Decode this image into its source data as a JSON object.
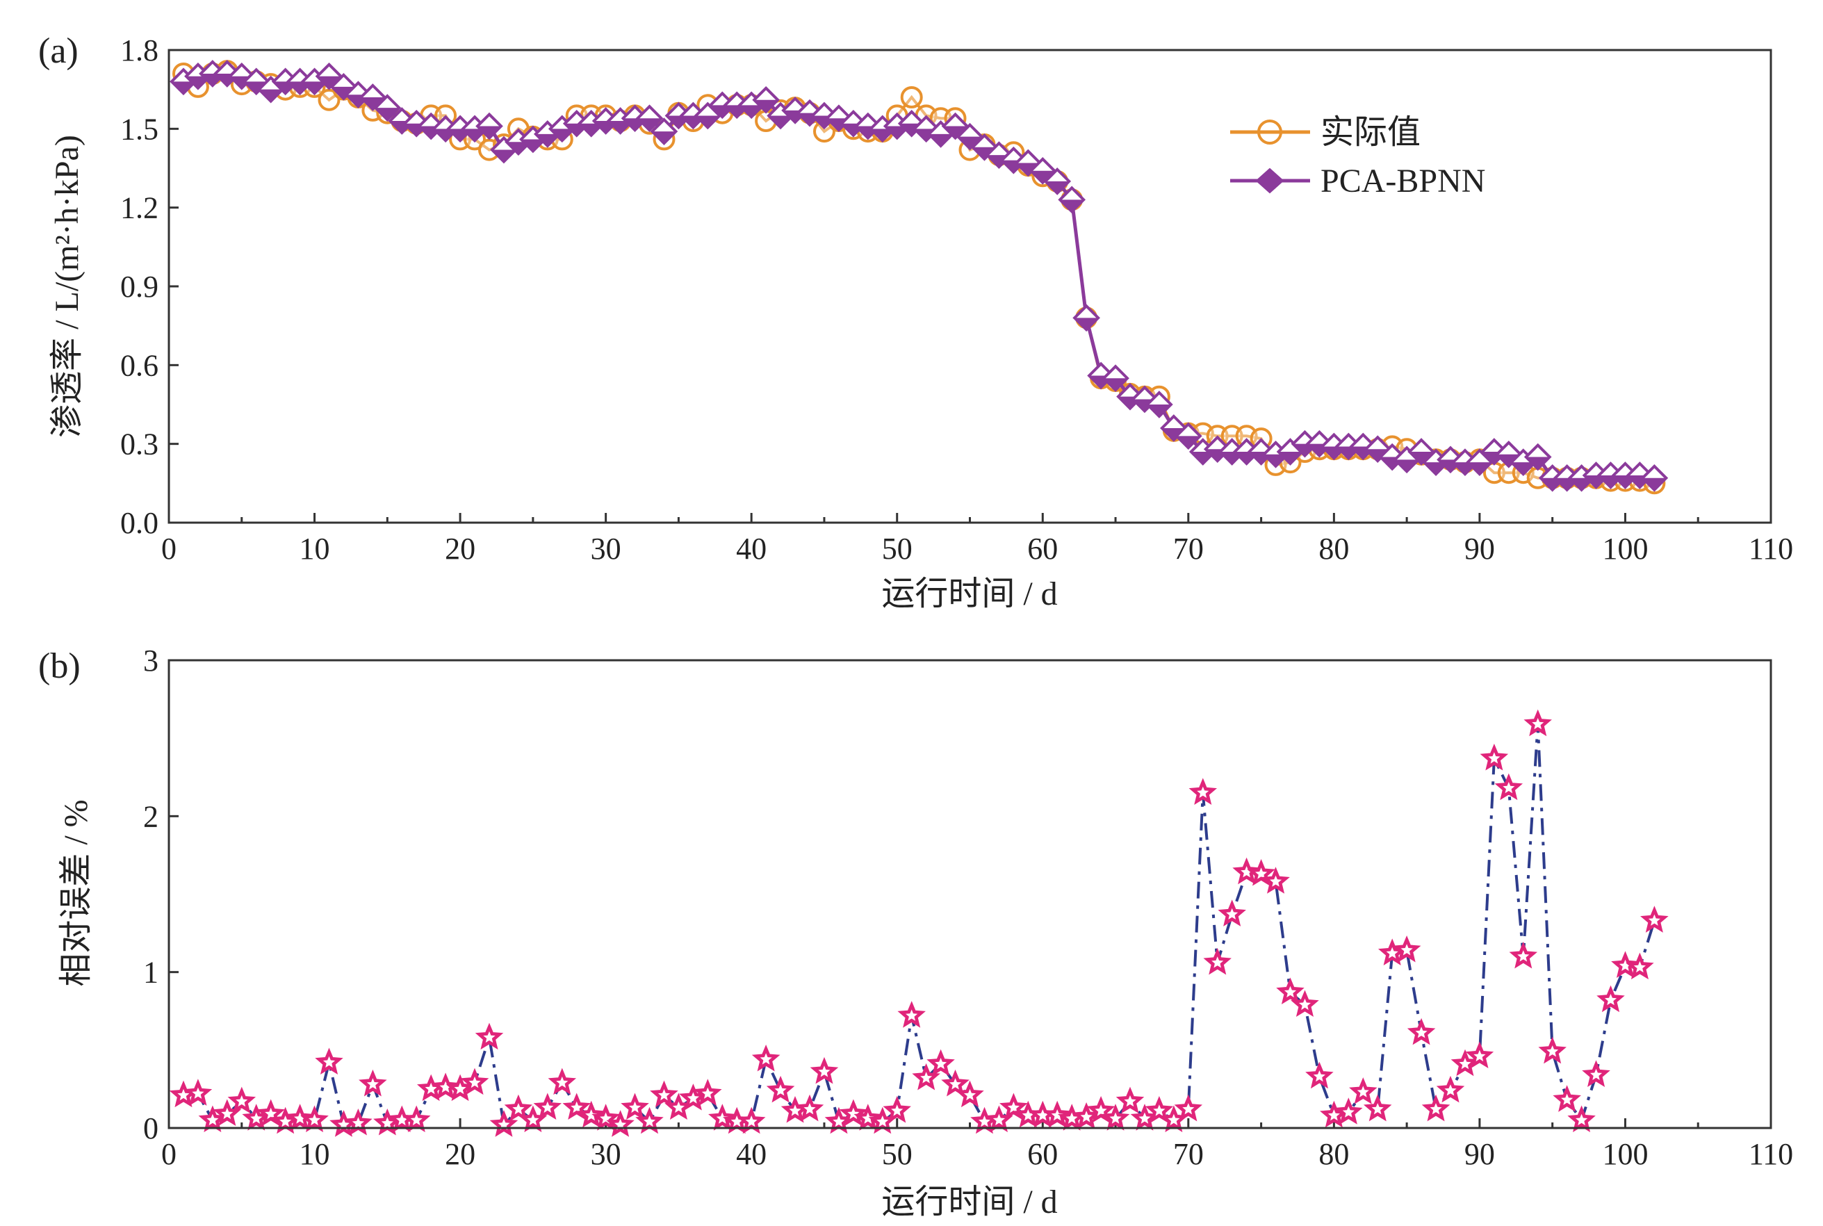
{
  "chart_data": [
    {
      "type": "line",
      "panel_label": "(a)",
      "xlabel": "运行时间 / d",
      "ylabel": "渗透率 / L/(m²·h·kPa)",
      "xlim": [
        0,
        110
      ],
      "ylim": [
        0.0,
        1.8
      ],
      "xticks": [
        "0",
        "10",
        "20",
        "30",
        "40",
        "50",
        "60",
        "70",
        "80",
        "90",
        "100",
        "110"
      ],
      "yticks": [
        "0.0",
        "0.3",
        "0.6",
        "0.9",
        "1.2",
        "1.5",
        "1.8"
      ],
      "legend_position": "upper-right",
      "x": [
        1,
        2,
        3,
        4,
        5,
        6,
        7,
        8,
        9,
        10,
        11,
        12,
        13,
        14,
        15,
        16,
        17,
        18,
        19,
        20,
        21,
        22,
        23,
        24,
        25,
        26,
        27,
        28,
        29,
        30,
        31,
        32,
        33,
        34,
        35,
        36,
        37,
        38,
        39,
        40,
        41,
        42,
        43,
        44,
        45,
        46,
        47,
        48,
        49,
        50,
        51,
        52,
        53,
        54,
        55,
        56,
        57,
        58,
        59,
        60,
        61,
        62,
        63,
        64,
        65,
        66,
        67,
        68,
        69,
        70,
        71,
        72,
        73,
        74,
        75,
        76,
        77,
        78,
        79,
        80,
        81,
        82,
        83,
        84,
        85,
        86,
        87,
        88,
        89,
        90,
        91,
        92,
        93,
        94,
        95,
        96,
        97,
        98,
        99,
        100,
        101,
        102
      ],
      "series": [
        {
          "name": "实际值",
          "color": "#e8922e",
          "marker": "circle",
          "values": [
            1.71,
            1.66,
            1.71,
            1.72,
            1.67,
            1.68,
            1.67,
            1.65,
            1.66,
            1.66,
            1.61,
            1.65,
            1.62,
            1.57,
            1.56,
            1.53,
            1.52,
            1.55,
            1.55,
            1.46,
            1.46,
            1.42,
            1.44,
            1.5,
            1.47,
            1.46,
            1.46,
            1.55,
            1.55,
            1.55,
            1.53,
            1.55,
            1.52,
            1.46,
            1.56,
            1.53,
            1.59,
            1.56,
            1.59,
            1.59,
            1.53,
            1.57,
            1.58,
            1.56,
            1.49,
            1.53,
            1.5,
            1.49,
            1.49,
            1.55,
            1.62,
            1.55,
            1.54,
            1.54,
            1.42,
            1.44,
            1.4,
            1.41,
            1.36,
            1.32,
            1.3,
            1.23,
            0.78,
            0.55,
            0.54,
            0.49,
            0.48,
            0.48,
            0.35,
            0.34,
            0.34,
            0.33,
            0.33,
            0.33,
            0.32,
            0.22,
            0.23,
            0.27,
            0.28,
            0.28,
            0.28,
            0.28,
            0.28,
            0.29,
            0.28,
            0.26,
            0.24,
            0.24,
            0.23,
            0.24,
            0.19,
            0.19,
            0.19,
            0.17,
            0.17,
            0.17,
            0.17,
            0.17,
            0.16,
            0.16,
            0.16,
            0.15
          ]
        },
        {
          "name": "PCA-BPNN",
          "color": "#8b3a9b",
          "marker": "diamond",
          "values": [
            1.68,
            1.7,
            1.71,
            1.71,
            1.7,
            1.68,
            1.65,
            1.68,
            1.68,
            1.68,
            1.7,
            1.66,
            1.63,
            1.62,
            1.58,
            1.53,
            1.52,
            1.51,
            1.5,
            1.5,
            1.5,
            1.51,
            1.42,
            1.45,
            1.46,
            1.48,
            1.5,
            1.52,
            1.52,
            1.53,
            1.53,
            1.54,
            1.54,
            1.49,
            1.55,
            1.55,
            1.55,
            1.59,
            1.59,
            1.59,
            1.61,
            1.55,
            1.57,
            1.56,
            1.55,
            1.54,
            1.52,
            1.51,
            1.5,
            1.51,
            1.52,
            1.5,
            1.48,
            1.51,
            1.47,
            1.43,
            1.4,
            1.38,
            1.37,
            1.34,
            1.3,
            1.23,
            0.78,
            0.56,
            0.55,
            0.48,
            0.47,
            0.45,
            0.36,
            0.33,
            0.27,
            0.28,
            0.27,
            0.27,
            0.27,
            0.26,
            0.27,
            0.3,
            0.3,
            0.29,
            0.29,
            0.29,
            0.28,
            0.25,
            0.24,
            0.27,
            0.23,
            0.24,
            0.23,
            0.23,
            0.27,
            0.26,
            0.23,
            0.25,
            0.17,
            0.17,
            0.17,
            0.18,
            0.18,
            0.18,
            0.18,
            0.17
          ]
        }
      ]
    },
    {
      "type": "line",
      "panel_label": "(b)",
      "xlabel": "运行时间 / d",
      "ylabel": "相对误差 / %",
      "xlim": [
        0,
        110
      ],
      "ylim": [
        0,
        3
      ],
      "xticks": [
        "0",
        "10",
        "20",
        "30",
        "40",
        "50",
        "60",
        "70",
        "80",
        "90",
        "100",
        "110"
      ],
      "yticks": [
        "0",
        "1",
        "2",
        "3"
      ],
      "line_color": "#2d3c8c",
      "line_style": "dash-dot",
      "marker_color": "#e0257a",
      "marker": "star",
      "x": [
        1,
        2,
        3,
        4,
        5,
        6,
        7,
        8,
        9,
        10,
        11,
        12,
        13,
        14,
        15,
        16,
        17,
        18,
        19,
        20,
        21,
        22,
        23,
        24,
        25,
        26,
        27,
        28,
        29,
        30,
        31,
        32,
        33,
        34,
        35,
        36,
        37,
        38,
        39,
        40,
        41,
        42,
        43,
        44,
        45,
        46,
        47,
        48,
        49,
        50,
        51,
        52,
        53,
        54,
        55,
        56,
        57,
        58,
        59,
        60,
        61,
        62,
        63,
        64,
        65,
        66,
        67,
        68,
        69,
        70,
        71,
        72,
        73,
        74,
        75,
        76,
        77,
        78,
        79,
        80,
        81,
        82,
        83,
        84,
        85,
        86,
        87,
        88,
        89,
        90,
        91,
        92,
        93,
        94,
        95,
        96,
        97,
        98,
        99,
        100,
        101,
        102
      ],
      "values": [
        0.21,
        0.22,
        0.05,
        0.09,
        0.17,
        0.06,
        0.09,
        0.04,
        0.06,
        0.05,
        0.42,
        0.02,
        0.03,
        0.28,
        0.03,
        0.05,
        0.05,
        0.25,
        0.26,
        0.25,
        0.29,
        0.58,
        0.02,
        0.12,
        0.05,
        0.13,
        0.29,
        0.13,
        0.08,
        0.06,
        0.02,
        0.13,
        0.04,
        0.21,
        0.13,
        0.19,
        0.22,
        0.06,
        0.04,
        0.04,
        0.44,
        0.24,
        0.11,
        0.12,
        0.36,
        0.04,
        0.09,
        0.06,
        0.04,
        0.11,
        0.72,
        0.32,
        0.41,
        0.28,
        0.21,
        0.04,
        0.05,
        0.13,
        0.08,
        0.08,
        0.08,
        0.06,
        0.07,
        0.11,
        0.06,
        0.17,
        0.06,
        0.11,
        0.05,
        0.12,
        2.15,
        1.06,
        1.37,
        1.64,
        1.63,
        1.58,
        0.87,
        0.79,
        0.33,
        0.08,
        0.1,
        0.23,
        0.12,
        1.12,
        1.14,
        0.61,
        0.12,
        0.24,
        0.41,
        0.46,
        2.37,
        2.18,
        1.1,
        2.59,
        0.49,
        0.18,
        0.05,
        0.34,
        0.82,
        1.04,
        1.03,
        1.33
      ]
    }
  ]
}
